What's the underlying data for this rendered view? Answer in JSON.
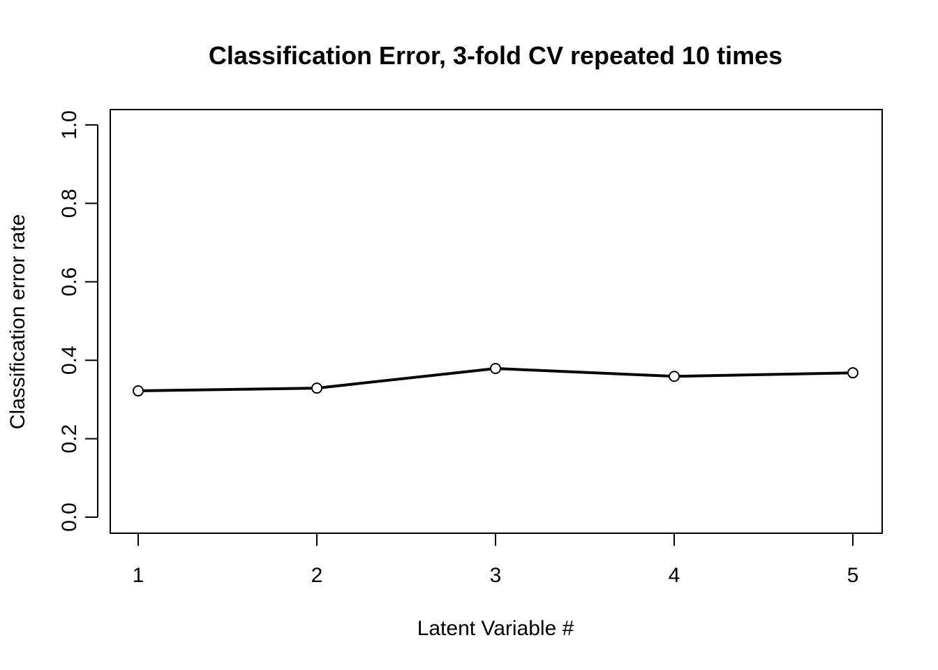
{
  "chart_data": {
    "type": "line",
    "title": "Classification Error, 3-fold CV repeated 10 times",
    "xlabel": "Latent Variable #",
    "ylabel": "Classification error rate",
    "x": [
      1,
      2,
      3,
      4,
      5
    ],
    "xticks": [
      "1",
      "2",
      "3",
      "4",
      "5"
    ],
    "yticks": [
      "0.0",
      "0.2",
      "0.4",
      "0.6",
      "0.8",
      "1.0"
    ],
    "ytick_values": [
      0.0,
      0.2,
      0.4,
      0.6,
      0.8,
      1.0
    ],
    "xlim": [
      1,
      5
    ],
    "ylim": [
      0,
      1
    ],
    "series": [
      {
        "name": "Classification error rate",
        "values": [
          0.322,
          0.329,
          0.379,
          0.359,
          0.368
        ]
      }
    ],
    "grid": false,
    "marker": "open-circle",
    "color": "#000000"
  }
}
